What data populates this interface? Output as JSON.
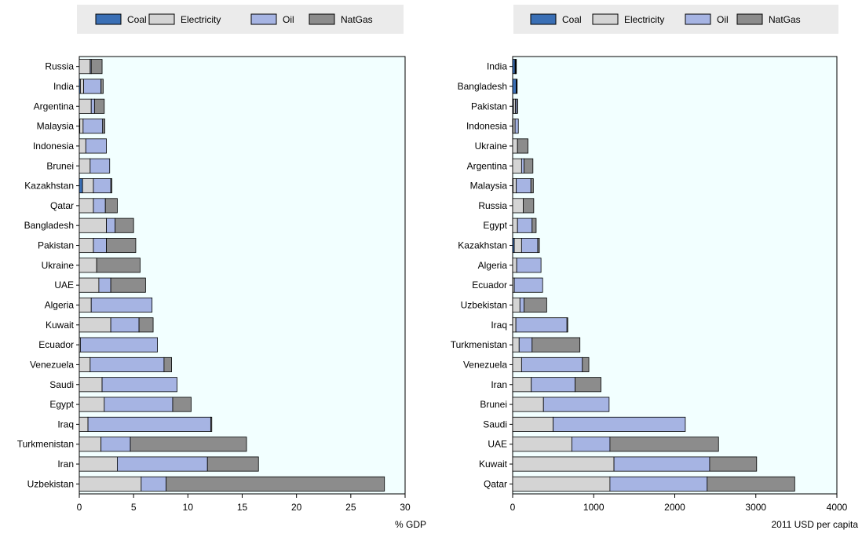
{
  "legend": {
    "items": [
      {
        "label": "Coal",
        "color": "#3A6FB5"
      },
      {
        "label": "Electricity",
        "color": "#D4D4D4"
      },
      {
        "label": "Oil",
        "color": "#A6B4E3"
      },
      {
        "label": "NatGas",
        "color": "#8C8C8C"
      }
    ],
    "background": "#EBEBEB"
  },
  "plot_background": "#F2FFFF",
  "chart_data": [
    {
      "type": "bar",
      "orientation": "horizontal",
      "stacked": true,
      "title": "",
      "xlabel": "% GDP",
      "ylabel": "",
      "xlim": [
        0,
        30
      ],
      "xticks": [
        0,
        5,
        10,
        15,
        20,
        25,
        30
      ],
      "legend": "top",
      "grid": false,
      "categories": [
        "Russia",
        "India",
        "Argentina",
        "Malaysia",
        "Indonesia",
        "Brunei",
        "Kazakhstan",
        "Qatar",
        "Bangladesh",
        "Pakistan",
        "Ukraine",
        "UAE",
        "Algeria",
        "Kuwait",
        "Ecuador",
        "Venezuela",
        "Saudi",
        "Egypt",
        "Iraq",
        "Turkmenistan",
        "Iran",
        "Uzbekistan"
      ],
      "series": [
        {
          "name": "Coal",
          "values": [
            0,
            0.1,
            0,
            0.05,
            0,
            0,
            0.3,
            0,
            0,
            0,
            0,
            0,
            0,
            0,
            0,
            0,
            0,
            0,
            0,
            0,
            0,
            0
          ]
        },
        {
          "name": "Electricity",
          "values": [
            1.0,
            0.3,
            1.1,
            0.3,
            0.6,
            1.0,
            1.0,
            1.3,
            2.5,
            1.3,
            1.6,
            1.8,
            1.1,
            2.9,
            0.1,
            1.0,
            2.1,
            2.3,
            0.8,
            2.0,
            3.5,
            5.7
          ]
        },
        {
          "name": "Oil",
          "values": [
            0.1,
            1.6,
            0.3,
            1.8,
            1.9,
            1.8,
            1.6,
            1.1,
            0.8,
            1.2,
            0,
            1.1,
            5.6,
            2.6,
            7.1,
            6.8,
            6.9,
            6.3,
            11.3,
            2.7,
            8.3,
            2.3
          ]
        },
        {
          "name": "NatGas",
          "values": [
            1.0,
            0.2,
            0.9,
            0.2,
            0,
            0,
            0.1,
            1.1,
            1.7,
            2.7,
            4.0,
            3.2,
            0,
            1.3,
            0,
            0.7,
            0,
            1.7,
            0.1,
            10.7,
            4.7,
            20.1
          ]
        }
      ]
    },
    {
      "type": "bar",
      "orientation": "horizontal",
      "stacked": true,
      "title": "",
      "xlabel": "2011 USD per capita",
      "ylabel": "",
      "xlim": [
        0,
        4000
      ],
      "xticks": [
        0,
        1000,
        2000,
        3000,
        4000
      ],
      "legend": "top",
      "grid": false,
      "categories": [
        "India",
        "Bangladesh",
        "Pakistan",
        "Indonesia",
        "Ukraine",
        "Argentina",
        "Malaysia",
        "Russia",
        "Egypt",
        "Kazakhstan",
        "Algeria",
        "Ecuador",
        "Uzbekistan",
        "Iraq",
        "Turkmenistan",
        "Venezuela",
        "Iran",
        "Brunei",
        "Saudi",
        "UAE",
        "Kuwait",
        "Qatar"
      ],
      "series": [
        {
          "name": "Coal",
          "values": [
            30,
            45,
            10,
            5,
            0,
            0,
            5,
            0,
            0,
            20,
            0,
            0,
            0,
            0,
            0,
            0,
            0,
            0,
            0,
            0,
            0,
            0
          ]
        },
        {
          "name": "Electricity",
          "values": [
            5,
            5,
            25,
            25,
            60,
            110,
            40,
            130,
            60,
            90,
            50,
            20,
            90,
            40,
            80,
            110,
            230,
            380,
            500,
            730,
            1250,
            1200
          ]
        },
        {
          "name": "Oil",
          "values": [
            5,
            5,
            20,
            40,
            0,
            30,
            180,
            0,
            180,
            200,
            300,
            350,
            50,
            630,
            160,
            750,
            540,
            810,
            1630,
            470,
            1180,
            1200
          ]
        },
        {
          "name": "NatGas",
          "values": [
            5,
            0,
            5,
            0,
            130,
            110,
            30,
            130,
            50,
            20,
            0,
            0,
            280,
            10,
            590,
            80,
            320,
            0,
            0,
            1340,
            580,
            1080
          ]
        }
      ]
    }
  ]
}
